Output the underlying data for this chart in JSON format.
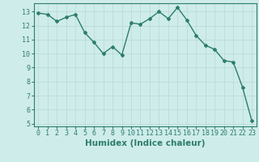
{
  "x": [
    0,
    1,
    2,
    3,
    4,
    5,
    6,
    7,
    8,
    9,
    10,
    11,
    12,
    13,
    14,
    15,
    16,
    17,
    18,
    19,
    20,
    21,
    22,
    23
  ],
  "y": [
    12.9,
    12.8,
    12.3,
    12.6,
    12.8,
    11.5,
    10.8,
    10.0,
    10.5,
    9.9,
    12.2,
    12.1,
    12.5,
    13.0,
    12.5,
    13.3,
    12.4,
    11.3,
    10.6,
    10.3,
    9.5,
    9.4,
    7.6,
    5.2
  ],
  "xlabel": "Humidex (Indice chaleur)",
  "ylim": [
    4.8,
    13.6
  ],
  "xlim": [
    -0.5,
    23.5
  ],
  "yticks": [
    5,
    6,
    7,
    8,
    9,
    10,
    11,
    12,
    13
  ],
  "xticks": [
    0,
    1,
    2,
    3,
    4,
    5,
    6,
    7,
    8,
    9,
    10,
    11,
    12,
    13,
    14,
    15,
    16,
    17,
    18,
    19,
    20,
    21,
    22,
    23
  ],
  "line_color": "#2d7d6e",
  "marker": "D",
  "marker_size": 2.0,
  "line_width": 1.0,
  "bg_color": "#ceecea",
  "grid_color": "#b8d8d5",
  "axis_color": "#2d7d6e",
  "xlabel_fontsize": 7.5,
  "tick_fontsize": 6.0
}
